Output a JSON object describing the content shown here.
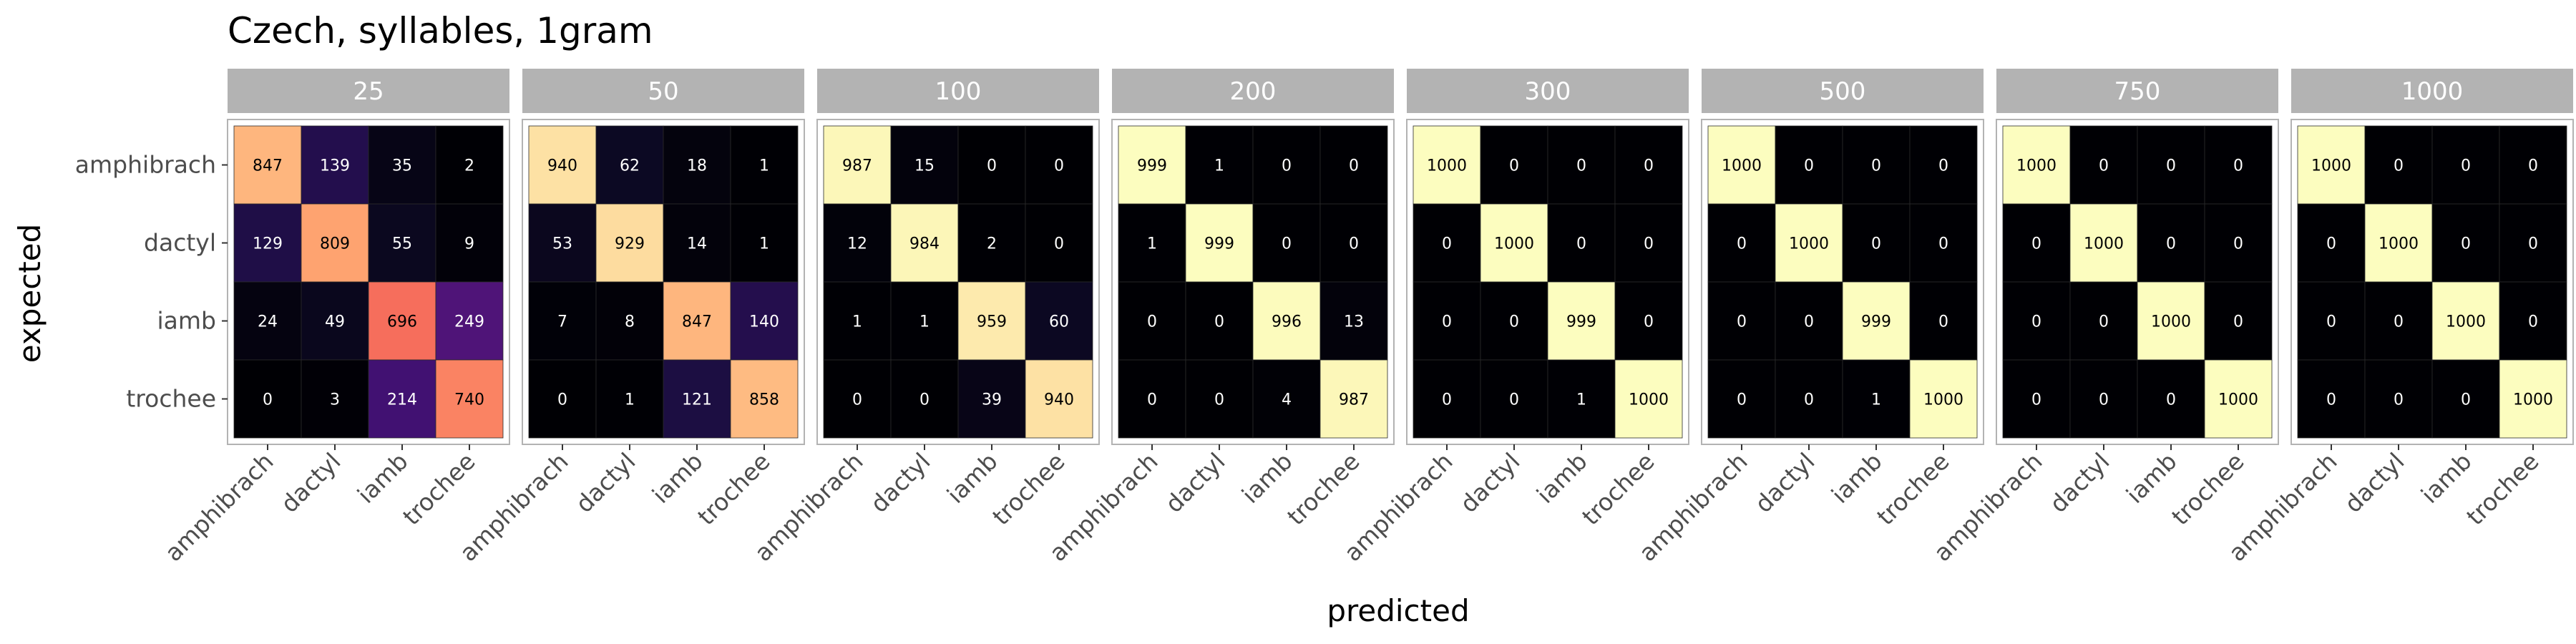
{
  "chart_data": {
    "type": "heatmap",
    "title": "Czech, syllables, 1gram",
    "xlabel": "predicted",
    "ylabel": "expected",
    "categories": [
      "amphibrach",
      "dactyl",
      "iamb",
      "trochee"
    ],
    "value_range": [
      0,
      1000
    ],
    "colormap": "magma",
    "grid": true,
    "legend": "none",
    "panels": [
      {
        "label": "25",
        "values": [
          [
            847,
            139,
            35,
            2
          ],
          [
            129,
            809,
            55,
            9
          ],
          [
            24,
            49,
            696,
            249
          ],
          [
            0,
            3,
            214,
            740
          ]
        ]
      },
      {
        "label": "50",
        "values": [
          [
            940,
            62,
            18,
            1
          ],
          [
            53,
            929,
            14,
            1
          ],
          [
            7,
            8,
            847,
            140
          ],
          [
            0,
            1,
            121,
            858
          ]
        ]
      },
      {
        "label": "100",
        "values": [
          [
            987,
            15,
            0,
            0
          ],
          [
            12,
            984,
            2,
            0
          ],
          [
            1,
            1,
            959,
            60
          ],
          [
            0,
            0,
            39,
            940
          ]
        ]
      },
      {
        "label": "200",
        "values": [
          [
            999,
            1,
            0,
            0
          ],
          [
            1,
            999,
            0,
            0
          ],
          [
            0,
            0,
            996,
            13
          ],
          [
            0,
            0,
            4,
            987
          ]
        ]
      },
      {
        "label": "300",
        "values": [
          [
            1000,
            0,
            0,
            0
          ],
          [
            0,
            1000,
            0,
            0
          ],
          [
            0,
            0,
            999,
            0
          ],
          [
            0,
            0,
            1,
            1000
          ]
        ]
      },
      {
        "label": "500",
        "values": [
          [
            1000,
            0,
            0,
            0
          ],
          [
            0,
            1000,
            0,
            0
          ],
          [
            0,
            0,
            999,
            0
          ],
          [
            0,
            0,
            1,
            1000
          ]
        ]
      },
      {
        "label": "750",
        "values": [
          [
            1000,
            0,
            0,
            0
          ],
          [
            0,
            1000,
            0,
            0
          ],
          [
            0,
            0,
            1000,
            0
          ],
          [
            0,
            0,
            0,
            1000
          ]
        ]
      },
      {
        "label": "1000",
        "values": [
          [
            1000,
            0,
            0,
            0
          ],
          [
            0,
            1000,
            0,
            0
          ],
          [
            0,
            0,
            1000,
            0
          ],
          [
            0,
            0,
            0,
            1000
          ]
        ]
      }
    ]
  }
}
